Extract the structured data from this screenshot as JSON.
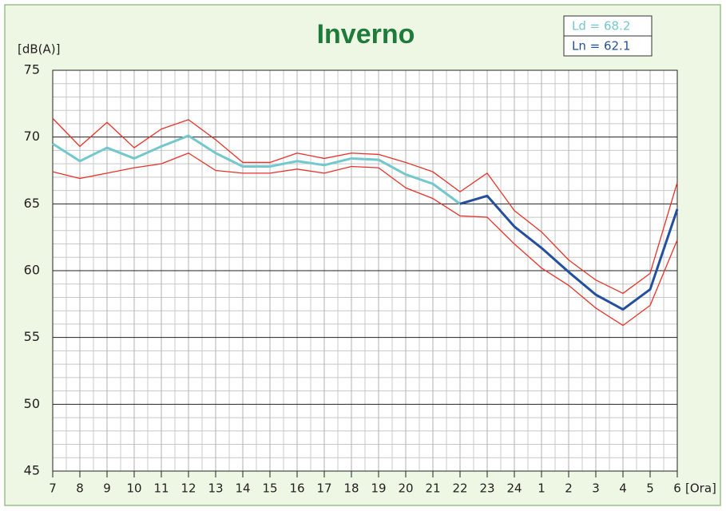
{
  "chart_data": {
    "type": "line",
    "title": "Inverno",
    "y_label": "[dB(A)]",
    "x_label": "[Ora]",
    "categories": [
      "7",
      "8",
      "9",
      "10",
      "11",
      "12",
      "13",
      "14",
      "15",
      "16",
      "17",
      "18",
      "19",
      "20",
      "21",
      "22",
      "23",
      "24",
      "1",
      "2",
      "3",
      "4",
      "5",
      "6"
    ],
    "series": [
      {
        "color": "#e8322a",
        "values": [
          71.4,
          69.3,
          71.1,
          69.2,
          70.6,
          71.3,
          69.8,
          68.1,
          68.1,
          68.8,
          68.4,
          68.8,
          68.7,
          68.1,
          67.4,
          65.9,
          67.3,
          64.5,
          62.9,
          60.8,
          59.3,
          58.3,
          59.8,
          66.6
        ]
      },
      {
        "color": "#e8322a",
        "values": [
          67.4,
          66.9,
          67.3,
          67.7,
          68.0,
          68.8,
          67.5,
          67.3,
          67.3,
          67.6,
          67.3,
          67.8,
          67.7,
          66.2,
          65.4,
          64.1,
          64.0,
          62.0,
          60.2,
          58.9,
          57.2,
          55.9,
          57.4,
          62.3
        ]
      },
      {
        "name": "Ld = 68.2",
        "color": "#72c8cc",
        "values": [
          69.5,
          68.2,
          69.2,
          68.4,
          69.3,
          70.1,
          68.8,
          67.8,
          67.8,
          68.2,
          67.9,
          68.4,
          68.3,
          67.2,
          66.5,
          65.0,
          null,
          null,
          null,
          null,
          null,
          null,
          null,
          null
        ]
      },
      {
        "name": "Ln = 62.1",
        "color": "#244f9e",
        "values": [
          null,
          null,
          null,
          null,
          null,
          null,
          null,
          null,
          null,
          null,
          null,
          null,
          null,
          null,
          null,
          65.0,
          65.6,
          63.3,
          61.7,
          59.9,
          58.2,
          57.1,
          58.6,
          64.6
        ]
      }
    ],
    "ylim": [
      45,
      75
    ],
    "yticks": [
      45,
      50,
      55,
      60,
      65,
      70,
      75
    ],
    "yminorticks": [
      46,
      47,
      48,
      49,
      51,
      52,
      53,
      54,
      56,
      57,
      58,
      59,
      61,
      62,
      63,
      64,
      66,
      67,
      68,
      69,
      71,
      72,
      73,
      74
    ],
    "grid": true
  }
}
